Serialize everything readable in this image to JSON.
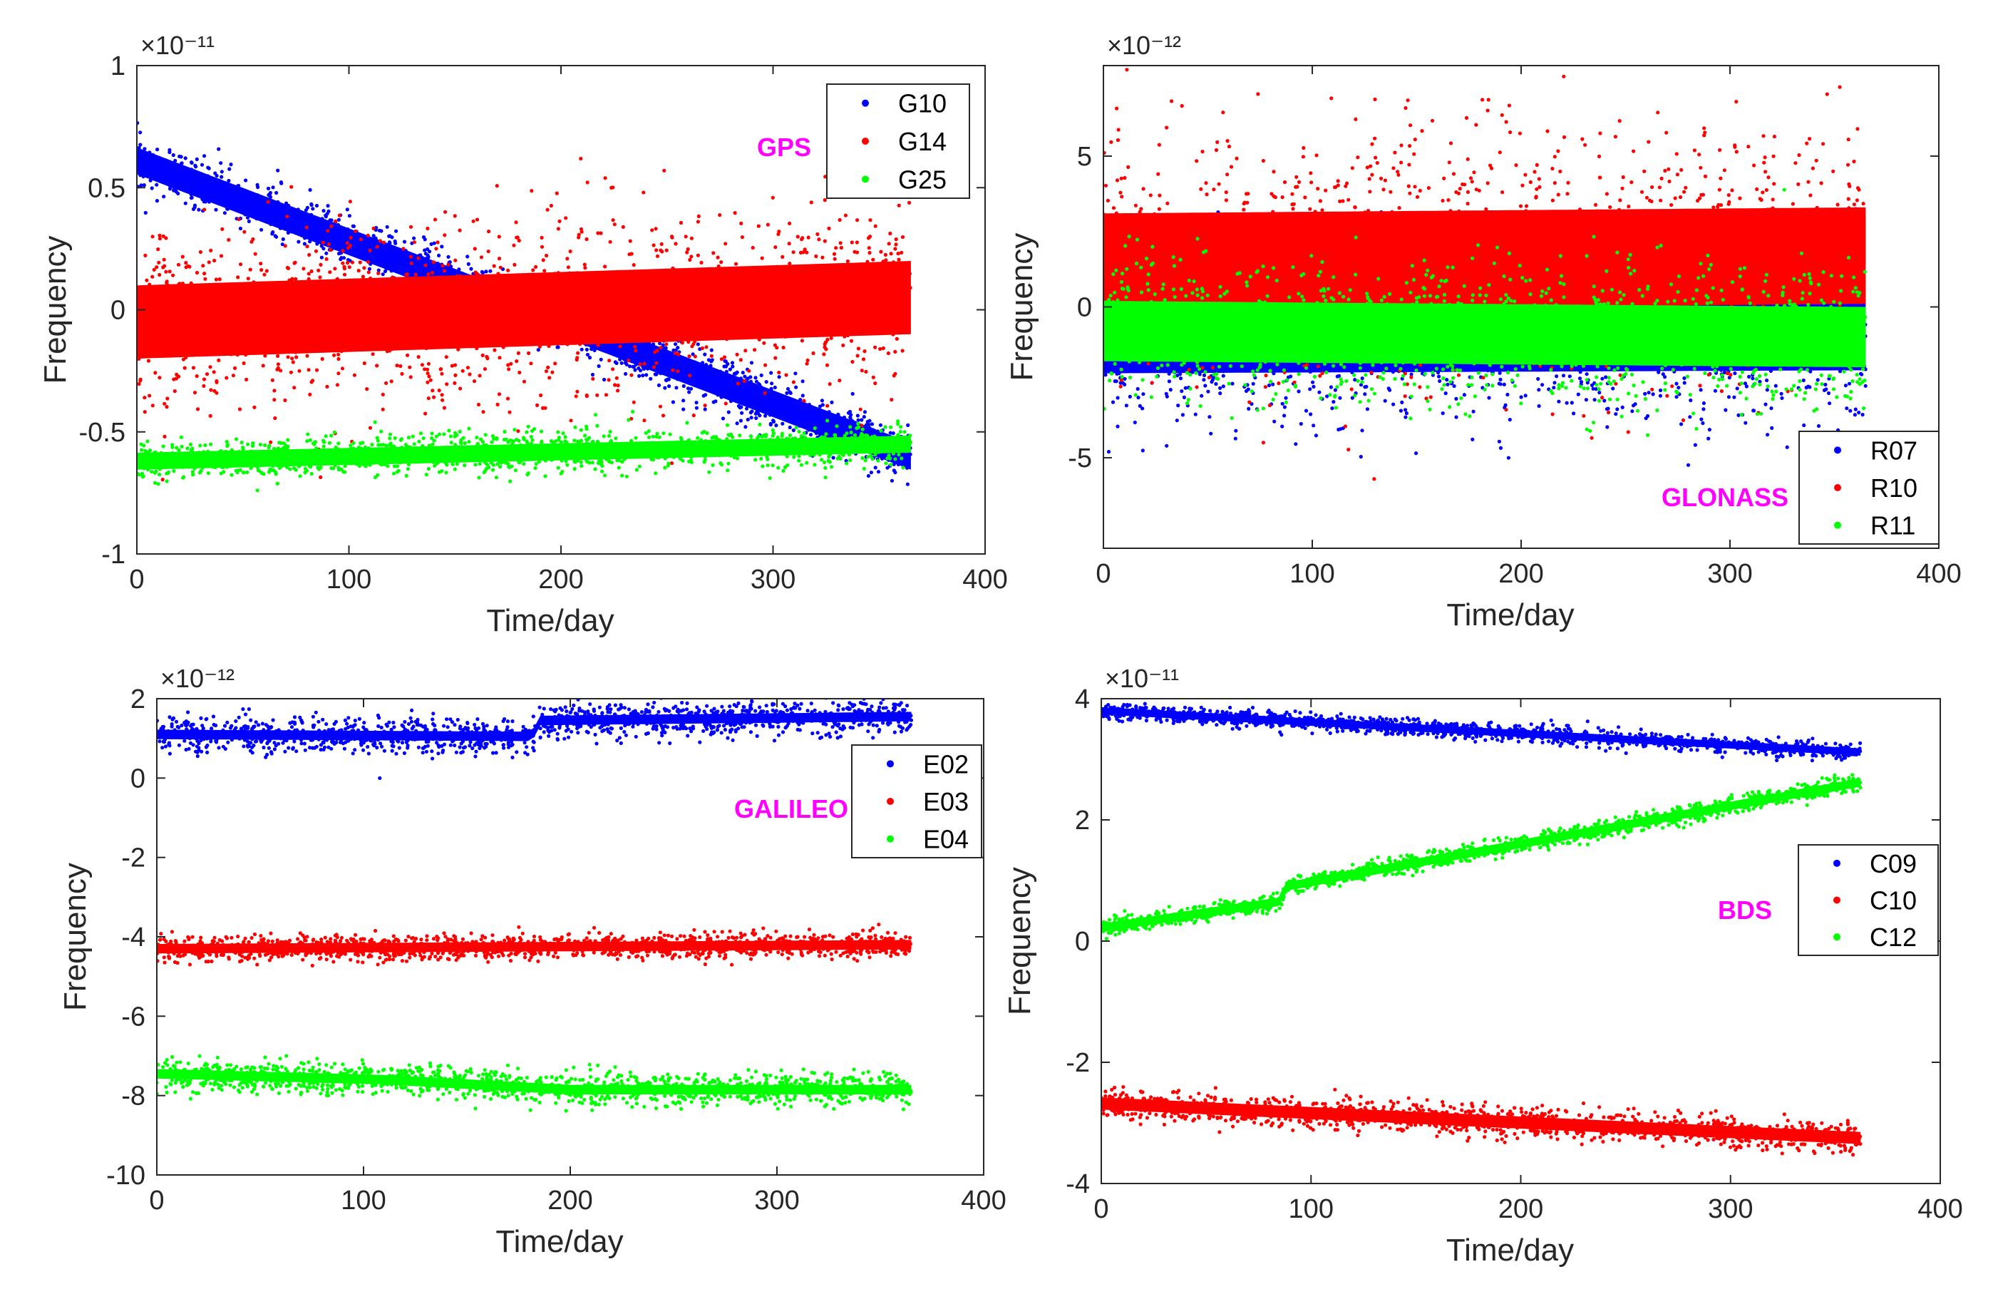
{
  "chart_data": [
    {
      "type": "scatter",
      "group": "GPS",
      "title": "",
      "annotation": "GPS",
      "xlabel": "Time/day",
      "ylabel": "Frequency",
      "xlim": [
        0,
        400
      ],
      "ylim": [
        -1,
        1
      ],
      "exponent": "×10⁻¹¹",
      "xticks": [
        "0",
        "100",
        "200",
        "300",
        "400"
      ],
      "yticks": [
        "-1",
        "-0.5",
        "0",
        "0.5",
        "1"
      ],
      "ytick_values": [
        -1,
        -0.5,
        0,
        0.5,
        1
      ],
      "legend_position": "top-right",
      "x_range": [
        0,
        365
      ],
      "series": [
        {
          "name": "G10",
          "color": "#0000ff",
          "start": 0.61,
          "end": -0.6,
          "spread": 0.055,
          "outlier": 0.06,
          "knots": [
            [
              0,
              0.61
            ],
            [
              365,
              -0.6
            ]
          ]
        },
        {
          "name": "G14",
          "color": "#ff0000",
          "start": -0.05,
          "end": 0.05,
          "spread": 0.15,
          "outlier": 0.25,
          "knots": [
            [
              0,
              -0.05
            ],
            [
              365,
              0.05
            ]
          ]
        },
        {
          "name": "G25",
          "color": "#00ff00",
          "start": -0.62,
          "end": -0.55,
          "spread": 0.035,
          "outlier": 0.05,
          "knots": [
            [
              0,
              -0.62
            ],
            [
              365,
              -0.55
            ]
          ]
        }
      ]
    },
    {
      "type": "scatter",
      "group": "GLONASS",
      "title": "",
      "annotation": "GLONASS",
      "xlabel": "Time/day",
      "ylabel": "Frequency",
      "xlim": [
        0,
        400
      ],
      "ylim": [
        -8,
        8
      ],
      "exponent": "×10⁻¹²",
      "xticks": [
        "0",
        "100",
        "200",
        "300",
        "400"
      ],
      "yticks": [
        "-5",
        "0",
        "5"
      ],
      "ytick_values": [
        -5,
        0,
        5
      ],
      "legend_position": "bottom-right",
      "x_range": [
        0,
        365
      ],
      "series": [
        {
          "name": "R07",
          "color": "#0000ff",
          "start": -1.0,
          "end": -0.9,
          "spread": 1.2,
          "outlier": 1.8,
          "knots": [
            [
              0,
              -1.0
            ],
            [
              365,
              -0.9
            ]
          ]
        },
        {
          "name": "R10",
          "color": "#ff0000",
          "start": 1.5,
          "end": 1.7,
          "spread": 1.6,
          "outlier": 2.8,
          "knots": [
            [
              0,
              1.5
            ],
            [
              365,
              1.7
            ]
          ]
        },
        {
          "name": "R11",
          "color": "#00ff00",
          "start": -0.8,
          "end": -1.0,
          "spread": 1.0,
          "outlier": 1.3,
          "knots": [
            [
              0,
              -0.8
            ],
            [
              365,
              -1.0
            ]
          ]
        }
      ]
    },
    {
      "type": "scatter",
      "group": "GALILEO",
      "title": "",
      "annotation": "GALILEO",
      "xlabel": "Time/day",
      "ylabel": "Frequency",
      "xlim": [
        0,
        400
      ],
      "ylim": [
        -10,
        2
      ],
      "exponent": "×10⁻¹²",
      "xticks": [
        "0",
        "100",
        "200",
        "300",
        "400"
      ],
      "yticks": [
        "-10",
        "-8",
        "-6",
        "-4",
        "-2",
        "0",
        "2"
      ],
      "ytick_values": [
        -10,
        -8,
        -6,
        -4,
        -2,
        0,
        2
      ],
      "legend_position": "top-right",
      "x_range": [
        0,
        365
      ],
      "series": [
        {
          "name": "E02",
          "color": "#0000ff",
          "start": 1.1,
          "end": 1.55,
          "spread": 0.12,
          "outlier": 0.35,
          "knots": [
            [
              0,
              1.1
            ],
            [
              182,
              1.05
            ],
            [
              184,
              1.45
            ],
            [
              365,
              1.55
            ]
          ]
        },
        {
          "name": "E03",
          "color": "#ff0000",
          "start": -4.3,
          "end": -4.2,
          "spread": 0.12,
          "outlier": 0.2,
          "knots": [
            [
              0,
              -4.3
            ],
            [
              365,
              -4.2
            ]
          ]
        },
        {
          "name": "E04",
          "color": "#00ff00",
          "start": -7.45,
          "end": -7.85,
          "spread": 0.12,
          "outlier": 0.3,
          "knots": [
            [
              0,
              -7.45
            ],
            [
              110,
              -7.6
            ],
            [
              200,
              -7.85
            ],
            [
              365,
              -7.85
            ]
          ]
        }
      ]
    },
    {
      "type": "scatter",
      "group": "BDS",
      "title": "",
      "annotation": "BDS",
      "xlabel": "Time/day",
      "ylabel": "Frequency",
      "xlim": [
        0,
        400
      ],
      "ylim": [
        -4,
        4
      ],
      "exponent": "×10⁻¹¹",
      "xticks": [
        "0",
        "100",
        "200",
        "300",
        "400"
      ],
      "yticks": [
        "-4",
        "-2",
        "0",
        "2",
        "4"
      ],
      "ytick_values": [
        -4,
        -2,
        0,
        2,
        4
      ],
      "legend_position": "right",
      "x_range": [
        0,
        362
      ],
      "series": [
        {
          "name": "C09",
          "color": "#0000ff",
          "start": 3.8,
          "end": 3.12,
          "spread": 0.06,
          "outlier": 0.08,
          "knots": [
            [
              0,
              3.8
            ],
            [
              362,
              3.12
            ]
          ]
        },
        {
          "name": "C10",
          "color": "#ff0000",
          "start": -2.68,
          "end": -3.25,
          "spread": 0.1,
          "outlier": 0.15,
          "knots": [
            [
              0,
              -2.68
            ],
            [
              362,
              -3.25
            ]
          ]
        },
        {
          "name": "C12",
          "color": "#00ff00",
          "start": 0.22,
          "end": 2.62,
          "spread": 0.07,
          "outlier": 0.08,
          "knots": [
            [
              0,
              0.22
            ],
            [
              85,
              0.65
            ],
            [
              88,
              0.9
            ],
            [
              362,
              2.62
            ]
          ]
        }
      ]
    }
  ],
  "colors": {
    "axis": "#262626",
    "annotation": "#ff00ff",
    "background": "#ffffff"
  }
}
